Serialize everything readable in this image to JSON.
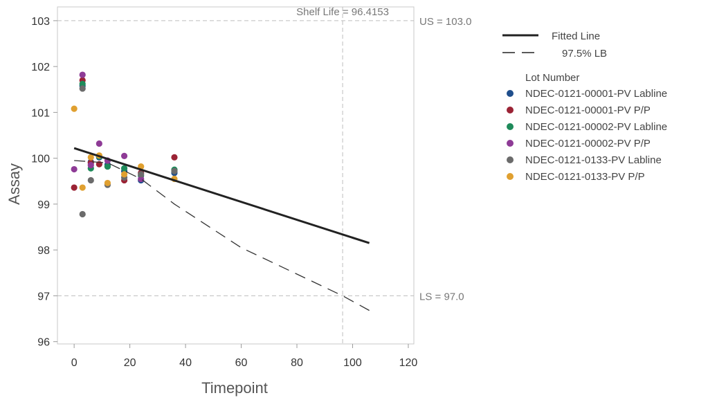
{
  "chart_data": {
    "type": "scatter",
    "title": "",
    "xlabel": "Timepoint",
    "ylabel": "Assay",
    "xlim": [
      -6,
      122
    ],
    "ylim": [
      95.95,
      103.3
    ],
    "x_ticks": [
      0,
      20,
      40,
      60,
      80,
      100,
      120
    ],
    "y_ticks": [
      96,
      97,
      98,
      99,
      100,
      101,
      102,
      103
    ],
    "grid": false,
    "legend_position": "right",
    "reference_lines": {
      "upper_spec": {
        "label": "US = 103.0",
        "value": 103.0
      },
      "lower_spec": {
        "label": "LS = 97.0",
        "value": 97.0
      },
      "shelf_life": {
        "label": "Shelf Life = 96.4153",
        "value": 96.4153
      }
    },
    "fitted_line": {
      "label": "Fitted Line",
      "x": [
        0,
        106
      ],
      "y": [
        100.22,
        98.15
      ]
    },
    "lower_bound": {
      "label": "97.5% LB",
      "x": [
        0,
        12,
        24,
        36,
        60,
        96.4153,
        106
      ],
      "y": [
        99.95,
        99.9,
        99.55,
        99.0,
        98.05,
        97.0,
        96.68
      ]
    },
    "legend_title": "Lot Number",
    "series": [
      {
        "name": "NDEC-0121-00001-PV Labline",
        "color": "#1f4e8c",
        "x": [
          3,
          6,
          9,
          12,
          18,
          24,
          36
        ],
        "y": [
          101.58,
          99.92,
          100.02,
          99.86,
          99.72,
          99.52,
          99.68
        ]
      },
      {
        "name": "NDEC-0121-00001-PV P/P",
        "color": "#9b2335",
        "x": [
          0,
          3,
          6,
          9,
          12,
          18,
          24,
          36
        ],
        "y": [
          99.36,
          101.7,
          99.9,
          99.87,
          99.82,
          99.52,
          99.68,
          100.02
        ]
      },
      {
        "name": "NDEC-0121-00002-PV Labline",
        "color": "#1e8a5a",
        "x": [
          3,
          6,
          9,
          12,
          18,
          24,
          36
        ],
        "y": [
          101.62,
          99.78,
          100.04,
          99.82,
          99.78,
          99.62,
          99.75
        ]
      },
      {
        "name": "NDEC-0121-00002-PV P/P",
        "color": "#8e3b96",
        "x": [
          0,
          3,
          6,
          9,
          12,
          18,
          24
        ],
        "y": [
          99.76,
          101.82,
          99.85,
          100.32,
          99.95,
          100.05,
          99.55
        ]
      },
      {
        "name": "NDEC-0121-0133-PV Labline",
        "color": "#6b6b6b",
        "x": [
          3,
          3,
          6,
          12,
          18,
          24,
          36
        ],
        "y": [
          98.78,
          101.52,
          99.52,
          99.42,
          99.58,
          99.65,
          99.72
        ]
      },
      {
        "name": "NDEC-0121-0133-PV P/P",
        "color": "#e0a030",
        "x": [
          0,
          3,
          6,
          9,
          12,
          18,
          24,
          36
        ],
        "y": [
          101.08,
          99.36,
          100.02,
          100.06,
          99.46,
          99.65,
          99.82,
          99.55
        ]
      }
    ]
  }
}
